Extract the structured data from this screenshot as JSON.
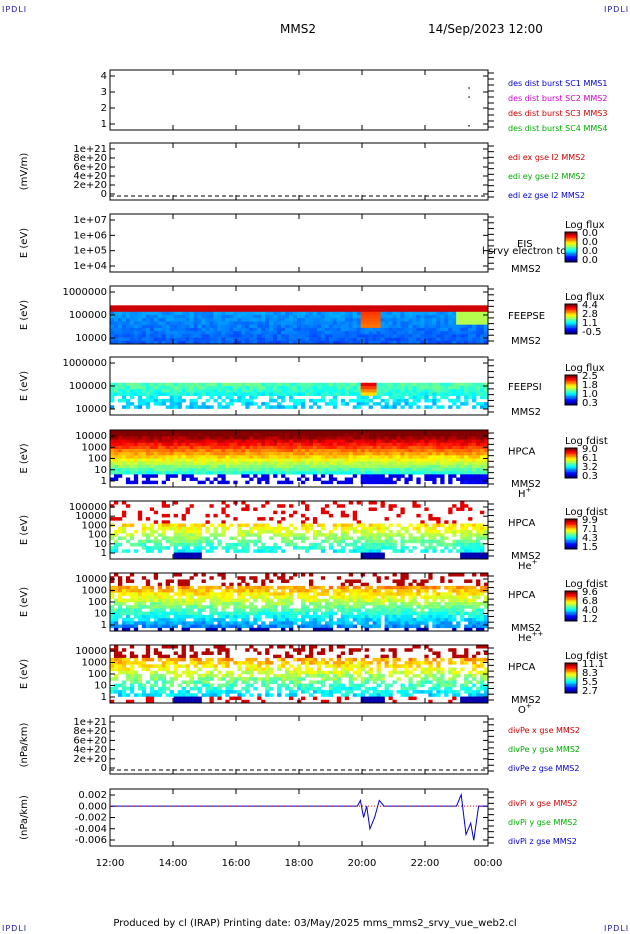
{
  "corner_label": "IPDLI",
  "header": {
    "spacecraft": "MMS2",
    "datetime": "14/Sep/2023 12:00"
  },
  "footer": "Produced by cl (IRAP)   Printing date: 03/May/2025   mms_mms2_srvy_vue_web2.cl",
  "chart_data": [
    {
      "type": "line",
      "id": "des",
      "ylabel": "",
      "yticks": [
        "4",
        "3",
        "2",
        "1"
      ],
      "ylim": [
        0.5,
        4.5
      ],
      "legend": [
        {
          "label": "des dist burst SC1 MMS1",
          "color": "#0000cc"
        },
        {
          "label": "des dist burst SC2 MMS2",
          "color": "#cc00cc"
        },
        {
          "label": "des dist burst SC3 MMS3",
          "color": "#cc0000"
        },
        {
          "label": "des dist burst SC4 MMS4",
          "color": "#00aa00"
        }
      ]
    },
    {
      "type": "line",
      "id": "edi",
      "ylabel": "(mV/m)",
      "yticks": [
        "1e+21",
        "8e+20",
        "6e+20",
        "4e+20",
        "2e+20",
        "0"
      ],
      "legend": [
        {
          "label": "edi ex gse l2 MMS2",
          "color": "#cc0000"
        },
        {
          "label": "edi ey gse l2 MMS2",
          "color": "#00aa00"
        },
        {
          "label": "edi ez gse l2 MMS2",
          "color": "#0000cc"
        }
      ]
    },
    {
      "type": "heatmap",
      "id": "eis",
      "ylabel": "E (eV)",
      "yticks": [
        "1e+07",
        "1e+06",
        "1e+05",
        "1e+04"
      ],
      "instrument": "EIS",
      "sc": "MMS2",
      "overlay": "l srvy electron to",
      "cbar_title": "Log flux",
      "cbar_ticks": [
        "0.0",
        "0.0",
        "0.0",
        "0.0"
      ]
    },
    {
      "type": "heatmap",
      "id": "feepse",
      "ylabel": "E (eV)",
      "yticks": [
        "1000000",
        "100000",
        "10000"
      ],
      "instrument": "FEEPSE",
      "sc": "MMS2",
      "cbar_title": "Log flux",
      "cbar_ticks": [
        "4.4",
        "2.8",
        "1.1",
        "-0.5"
      ]
    },
    {
      "type": "heatmap",
      "id": "feepsi",
      "ylabel": "E (eV)",
      "yticks": [
        "1000000",
        "100000",
        "10000"
      ],
      "instrument": "FEEPSI",
      "sc": "MMS2",
      "cbar_title": "Log flux",
      "cbar_ticks": [
        "2.5",
        "1.8",
        "1.0",
        "0.3"
      ]
    },
    {
      "type": "heatmap",
      "id": "hpca_h",
      "ylabel": "E (eV)",
      "yticks": [
        "10000",
        "1000",
        "100",
        "10",
        "1"
      ],
      "instrument": "HPCA",
      "sc": "MMS2",
      "species": "H",
      "species_sup": "+",
      "cbar_title": "Log fdist",
      "cbar_ticks": [
        "9.0",
        "6.1",
        "3.2",
        "0.3"
      ]
    },
    {
      "type": "heatmap",
      "id": "hpca_he",
      "ylabel": "E (eV)",
      "yticks": [
        "100000",
        "10000",
        "1000",
        "100",
        "10",
        "1"
      ],
      "instrument": "HPCA",
      "sc": "MMS2",
      "species": "He",
      "species_sup": "+",
      "cbar_title": "Log fdist",
      "cbar_ticks": [
        "9.9",
        "7.1",
        "4.3",
        "1.5"
      ]
    },
    {
      "type": "heatmap",
      "id": "hpca_hepp",
      "ylabel": "E (eV)",
      "yticks": [
        "10000",
        "1000",
        "100",
        "10",
        "1"
      ],
      "instrument": "HPCA",
      "sc": "MMS2",
      "species": "He",
      "species_sup": "++",
      "cbar_title": "Log fdist",
      "cbar_ticks": [
        "9.6",
        "6.8",
        "4.0",
        "1.2"
      ]
    },
    {
      "type": "heatmap",
      "id": "hpca_o",
      "ylabel": "E (eV)",
      "yticks": [
        "10000",
        "1000",
        "100",
        "10",
        "1"
      ],
      "instrument": "HPCA",
      "sc": "MMS2",
      "species": "O",
      "species_sup": "+",
      "cbar_title": "Log fdist",
      "cbar_ticks": [
        "11.1",
        "8.3",
        "5.5",
        "2.7"
      ]
    },
    {
      "type": "line",
      "id": "divpe",
      "ylabel": "(nPa/km)",
      "yticks": [
        "1e+21",
        "8e+20",
        "6e+20",
        "4e+20",
        "2e+20",
        "0"
      ],
      "legend": [
        {
          "label": "divPe x gse MMS2",
          "color": "#cc0000"
        },
        {
          "label": "divPe y gse MMS2",
          "color": "#00aa00"
        },
        {
          "label": "divPe z gse MMS2",
          "color": "#0000cc"
        }
      ]
    },
    {
      "type": "line",
      "id": "divpi",
      "ylabel": "(nPa/km)",
      "yticks": [
        "0.002",
        "0.000",
        "-0.002",
        "-0.004",
        "-0.006"
      ],
      "ylim": [
        -0.007,
        0.003
      ],
      "legend": [
        {
          "label": "divPi x gse MMS2",
          "color": "#cc0000"
        },
        {
          "label": "divPi y gse MMS2",
          "color": "#00aa00"
        },
        {
          "label": "divPi z gse MMS2",
          "color": "#0000cc"
        }
      ],
      "x": [
        12,
        19.85,
        19.95,
        20.05,
        20.15,
        20.25,
        20.4,
        20.55,
        20.7,
        23.0,
        23.15,
        23.3,
        23.45,
        23.55,
        23.7,
        24
      ],
      "y": [
        0.0,
        0.0,
        0.001,
        -0.002,
        0.0,
        -0.004,
        -0.002,
        0.001,
        0.0,
        0.0,
        0.002,
        -0.005,
        -0.003,
        -0.006,
        0.0,
        0.0
      ]
    }
  ],
  "x_axis": {
    "ticks": [
      "12:00",
      "14:00",
      "16:00",
      "18:00",
      "20:00",
      "22:00",
      "00:00"
    ],
    "xlim": [
      12,
      24
    ]
  }
}
